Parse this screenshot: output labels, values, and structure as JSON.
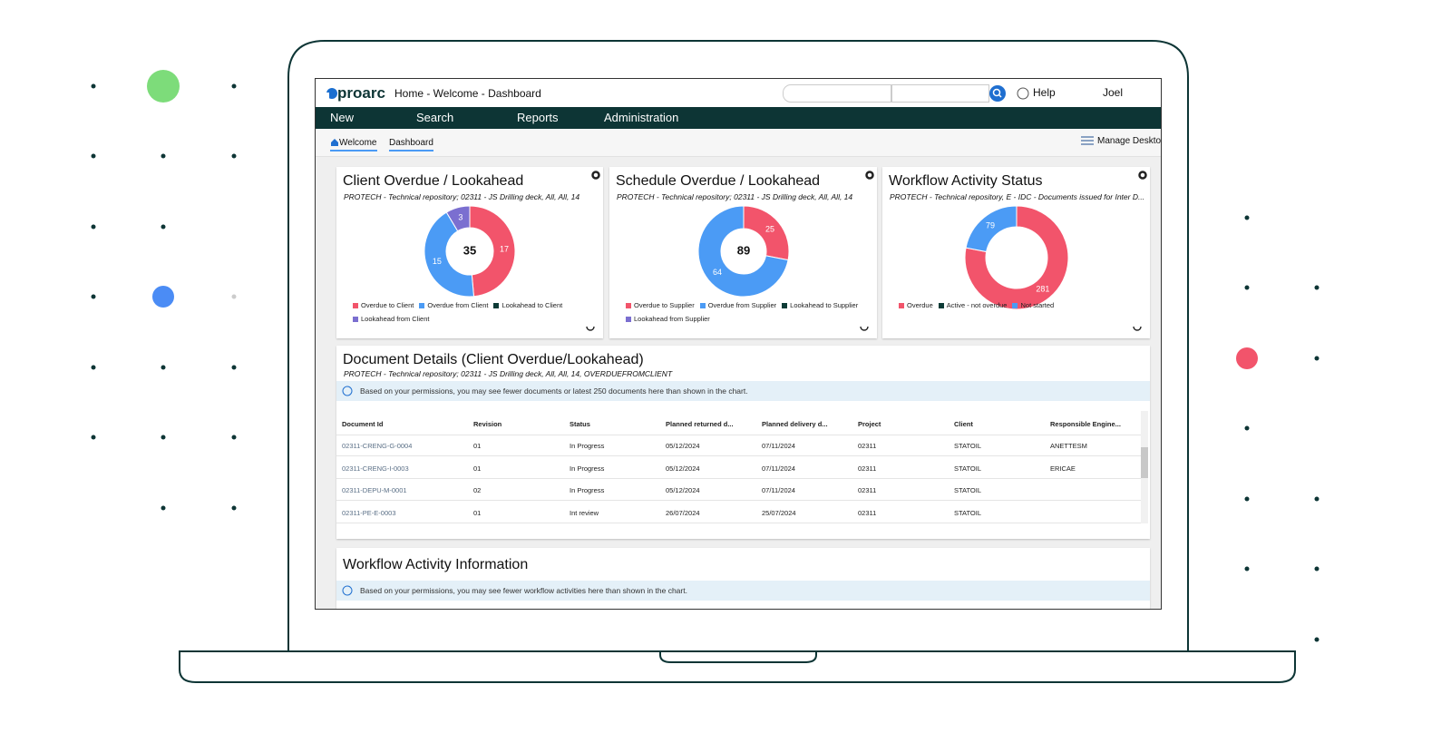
{
  "header": {
    "logo": "proarc",
    "breadcrumb": "Home - Welcome - Dashboard",
    "help": "Help",
    "user": "Joel"
  },
  "nav": [
    "New",
    "Search",
    "Reports",
    "Administration"
  ],
  "tabs": [
    "Welcome",
    "Dashboard"
  ],
  "manage": "Manage Desktop",
  "widgets": [
    {
      "title": "Client Overdue / Lookahead",
      "subtitle": "PROTECH - Technical repository; 02311 - JS Drilling deck, All, All, 14",
      "chart": {
        "type": "donut",
        "total": 35,
        "labels": [
          "Overdue to Client",
          "Overdue from Client",
          "Lookahead to Client",
          "Lookahead from Client"
        ],
        "colors": [
          "#f2546b",
          "#4b9bf5",
          "#0d3b36",
          "#7b6fd0"
        ],
        "values": [
          17,
          15,
          0,
          3
        ]
      }
    },
    {
      "title": "Schedule Overdue / Lookahead",
      "subtitle": "PROTECH - Technical repository; 02311 - JS Drilling deck, All, All, 14",
      "chart": {
        "type": "donut",
        "total": 89,
        "labels": [
          "Overdue to Supplier",
          "Overdue from Supplier",
          "Lookahead to Supplier",
          "Lookahead from Supplier"
        ],
        "colors": [
          "#f2546b",
          "#4b9bf5",
          "#0d3b36",
          "#7b6fd0"
        ],
        "values": [
          25,
          64,
          0,
          0
        ]
      }
    },
    {
      "title": "Workflow Activity Status",
      "subtitle": "PROTECH - Technical repository, E - IDC - Documents issued for Inter D...",
      "chart": {
        "type": "donut",
        "labels": [
          "Overdue",
          "Active - not overdue",
          "Not started"
        ],
        "colors": [
          "#f2546b",
          "#0d3b36",
          "#4b9bf5"
        ],
        "values": [
          281,
          0,
          79
        ]
      }
    }
  ],
  "documents": {
    "title": "Document Details (Client Overdue/Lookahead)",
    "subtitle": "PROTECH - Technical repository; 02311 - JS Drilling deck, All, All, 14, OVERDUEFROMCLIENT",
    "notice": "Based on your permissions, you may see fewer documents or latest 250 documents here than shown in the chart.",
    "columns": [
      "Document Id",
      "Revision",
      "Status",
      "Planned returned d...",
      "Planned delivery d...",
      "Project",
      "Client",
      "Responsible Engine..."
    ],
    "rows": [
      [
        "02311-CRENG-G-0004",
        "01",
        "In Progress",
        "05/12/2024",
        "07/11/2024",
        "02311",
        "STATOIL",
        "ANETTESM"
      ],
      [
        "02311-CRENG-I-0003",
        "01",
        "In Progress",
        "05/12/2024",
        "07/11/2024",
        "02311",
        "STATOIL",
        "ERICAE"
      ],
      [
        "02311-DEPU-M-0001",
        "02",
        "In Progress",
        "05/12/2024",
        "07/11/2024",
        "02311",
        "STATOIL",
        ""
      ],
      [
        "02311-PE-E-0003",
        "01",
        "Int review",
        "26/07/2024",
        "25/07/2024",
        "02311",
        "STATOIL",
        ""
      ]
    ]
  },
  "workflow": {
    "title": "Workflow Activity Information",
    "notice": "Based on your permissions, you may see fewer workflow activities here than shown in the chart."
  }
}
